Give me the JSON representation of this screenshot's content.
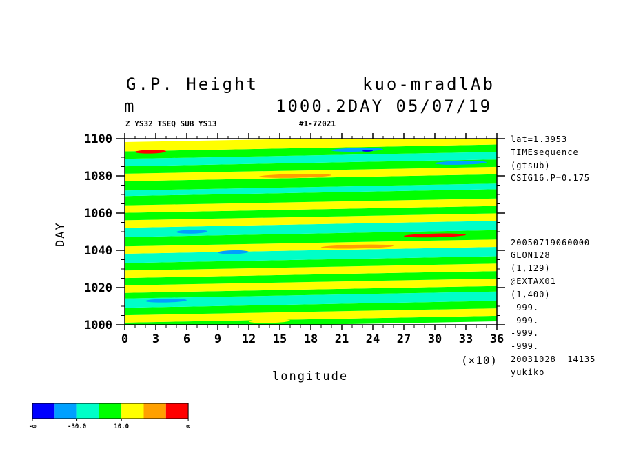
{
  "header": {
    "title_left": "G.P. Height",
    "title_right": "kuo-mradlAb",
    "unit": "m",
    "level_date": "1000.2DAY 05/07/19",
    "sub_left": "Z YS32 TSEQ SUB YS13",
    "sub_right": "#1-72021"
  },
  "side_info": {
    "top": [
      "lat=1.3953",
      "TIMEsequence",
      "(gtsub)",
      "CSIG16.P=0.175"
    ],
    "bottom": [
      "20050719060000",
      "GLON128",
      "(1,129)",
      "@EXTAX01",
      "(1,400)",
      "-999.",
      "-999.",
      "-999.",
      "-999.",
      "20031028  14135",
      "yukiko"
    ]
  },
  "colors": {
    "levels": [
      "#0000ff",
      "#00a0ff",
      "#00ffc8",
      "#00ff00",
      "#ffff00",
      "#ffa000",
      "#ff0000"
    ],
    "dark_blue": "#0000ff",
    "light_blue": "#00a0ff",
    "cyan": "#00ffc8",
    "green": "#00ff00",
    "yellow": "#ffff00",
    "orange": "#ffa000",
    "red": "#ff0000"
  },
  "colorbar": {
    "labels": [
      "-∞",
      "-30.0",
      "10.0",
      "∞"
    ]
  },
  "chart_data": {
    "type": "heatmap",
    "title": "G.P. Height",
    "xlabel": "longitude",
    "ylabel": "DAY",
    "x_multiplier_label": "(×10)",
    "xlim": [
      0,
      36
    ],
    "ylim": [
      1000,
      1100
    ],
    "x_ticks": [
      "0",
      "3",
      "6",
      "9",
      "12",
      "15",
      "18",
      "21",
      "24",
      "27",
      "30",
      "33",
      "36"
    ],
    "y_ticks": [
      "1000",
      "1020",
      "1040",
      "1060",
      "1080",
      "1100"
    ],
    "grid": false,
    "legend": "bottom-left colorbar",
    "bands": [
      {
        "lon": [
          0,
          36
        ],
        "day": [
          1000,
          1003
        ],
        "color": "green"
      },
      {
        "lon": [
          0,
          36
        ],
        "day": [
          1003,
          1007
        ],
        "color": "yellow"
      },
      {
        "lon": [
          0,
          36
        ],
        "day": [
          1007,
          1011
        ],
        "color": "green"
      },
      {
        "lon": [
          0,
          36
        ],
        "day": [
          1011,
          1016
        ],
        "color": "cyan"
      },
      {
        "lon": [
          0,
          36
        ],
        "day": [
          1016,
          1019
        ],
        "color": "green"
      },
      {
        "lon": [
          0,
          36
        ],
        "day": [
          1019,
          1023
        ],
        "color": "yellow"
      },
      {
        "lon": [
          0,
          36
        ],
        "day": [
          1023,
          1027
        ],
        "color": "green"
      },
      {
        "lon": [
          0,
          36
        ],
        "day": [
          1027,
          1031
        ],
        "color": "yellow"
      },
      {
        "lon": [
          0,
          36
        ],
        "day": [
          1031,
          1035
        ],
        "color": "green"
      },
      {
        "lon": [
          0,
          36
        ],
        "day": [
          1035,
          1040
        ],
        "color": "cyan"
      },
      {
        "lon": [
          0,
          36
        ],
        "day": [
          1040,
          1044
        ],
        "color": "yellow"
      },
      {
        "lon": [
          0,
          36
        ],
        "day": [
          1044,
          1049
        ],
        "color": "green"
      },
      {
        "lon": [
          0,
          36
        ],
        "day": [
          1049,
          1054
        ],
        "color": "cyan"
      },
      {
        "lon": [
          0,
          36
        ],
        "day": [
          1054,
          1058
        ],
        "color": "yellow"
      },
      {
        "lon": [
          0,
          36
        ],
        "day": [
          1058,
          1062
        ],
        "color": "green"
      },
      {
        "lon": [
          0,
          36
        ],
        "day": [
          1062,
          1066
        ],
        "color": "yellow"
      },
      {
        "lon": [
          0,
          36
        ],
        "day": [
          1066,
          1071
        ],
        "color": "green"
      },
      {
        "lon": [
          0,
          36
        ],
        "day": [
          1071,
          1074
        ],
        "color": "cyan"
      },
      {
        "lon": [
          0,
          36
        ],
        "day": [
          1074,
          1079
        ],
        "color": "green"
      },
      {
        "lon": [
          0,
          36
        ],
        "day": [
          1079,
          1083
        ],
        "color": "yellow"
      },
      {
        "lon": [
          0,
          36
        ],
        "day": [
          1083,
          1087
        ],
        "color": "green"
      },
      {
        "lon": [
          0,
          36
        ],
        "day": [
          1087,
          1091
        ],
        "color": "cyan"
      },
      {
        "lon": [
          0,
          36
        ],
        "day": [
          1091,
          1095
        ],
        "color": "green"
      },
      {
        "lon": [
          0,
          36
        ],
        "day": [
          1095,
          1100
        ],
        "color": "yellow"
      }
    ],
    "patches": [
      {
        "lon": [
          1,
          4
        ],
        "day": [
          1092,
          1094
        ],
        "color": "red"
      },
      {
        "lon": [
          20,
          25
        ],
        "day": [
          1093,
          1095
        ],
        "color": "light_blue"
      },
      {
        "lon": [
          23,
          24
        ],
        "day": [
          1093,
          1094
        ],
        "color": "dark_blue"
      },
      {
        "lon": [
          13,
          20
        ],
        "day": [
          1079,
          1081
        ],
        "color": "orange"
      },
      {
        "lon": [
          19,
          26
        ],
        "day": [
          1041,
          1043
        ],
        "color": "orange"
      },
      {
        "lon": [
          27,
          33
        ],
        "day": [
          1047,
          1049
        ],
        "color": "red"
      },
      {
        "lon": [
          5,
          8
        ],
        "day": [
          1049,
          1051
        ],
        "color": "light_blue"
      },
      {
        "lon": [
          2,
          6
        ],
        "day": [
          1012,
          1014
        ],
        "color": "light_blue"
      },
      {
        "lon": [
          9,
          12
        ],
        "day": [
          1038,
          1040
        ],
        "color": "light_blue"
      },
      {
        "lon": [
          30,
          35
        ],
        "day": [
          1086,
          1088
        ],
        "color": "light_blue"
      },
      {
        "lon": [
          12,
          16
        ],
        "day": [
          1001,
          1003
        ],
        "color": "yellow"
      }
    ]
  }
}
